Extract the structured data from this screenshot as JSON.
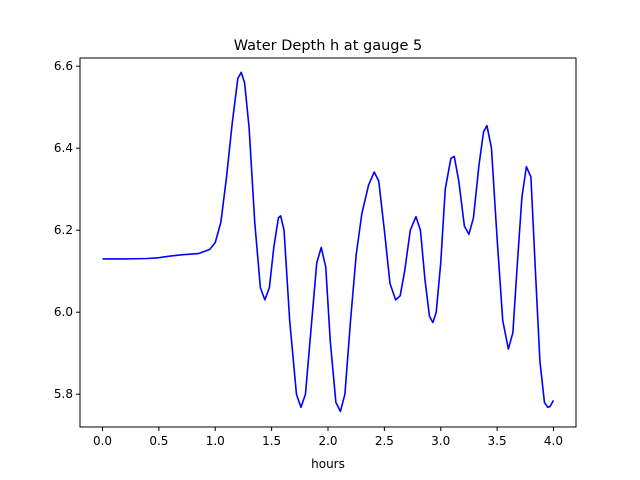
{
  "chart_data": {
    "type": "line",
    "title": "Water Depth h at gauge 5",
    "xlabel": "hours",
    "ylabel": "",
    "xlim": [
      -0.2,
      4.2
    ],
    "ylim": [
      5.72,
      6.62
    ],
    "xticks": [
      0.0,
      0.5,
      1.0,
      1.5,
      2.0,
      2.5,
      3.0,
      3.5,
      4.0
    ],
    "xtick_labels": [
      "0.0",
      "0.5",
      "1.0",
      "1.5",
      "2.0",
      "2.5",
      "3.0",
      "3.5",
      "4.0"
    ],
    "yticks": [
      5.8,
      6.0,
      6.2,
      6.4,
      6.6
    ],
    "ytick_labels": [
      "5.8",
      "6.0",
      "6.2",
      "6.4",
      "6.6"
    ],
    "grid": false,
    "legend": "none",
    "series": [
      {
        "color": "#0000ff",
        "points": [
          [
            0.0,
            6.13
          ],
          [
            0.2,
            6.13
          ],
          [
            0.4,
            6.131
          ],
          [
            0.5,
            6.133
          ],
          [
            0.6,
            6.137
          ],
          [
            0.7,
            6.14
          ],
          [
            0.85,
            6.143
          ],
          [
            0.95,
            6.153
          ],
          [
            1.0,
            6.17
          ],
          [
            1.05,
            6.22
          ],
          [
            1.1,
            6.33
          ],
          [
            1.15,
            6.46
          ],
          [
            1.2,
            6.57
          ],
          [
            1.23,
            6.585
          ],
          [
            1.26,
            6.56
          ],
          [
            1.3,
            6.45
          ],
          [
            1.35,
            6.22
          ],
          [
            1.4,
            6.06
          ],
          [
            1.44,
            6.03
          ],
          [
            1.48,
            6.06
          ],
          [
            1.52,
            6.16
          ],
          [
            1.56,
            6.23
          ],
          [
            1.58,
            6.235
          ],
          [
            1.61,
            6.2
          ],
          [
            1.66,
            5.98
          ],
          [
            1.72,
            5.8
          ],
          [
            1.76,
            5.768
          ],
          [
            1.8,
            5.8
          ],
          [
            1.85,
            5.96
          ],
          [
            1.9,
            6.12
          ],
          [
            1.94,
            6.158
          ],
          [
            1.98,
            6.11
          ],
          [
            2.02,
            5.93
          ],
          [
            2.07,
            5.78
          ],
          [
            2.11,
            5.758
          ],
          [
            2.15,
            5.8
          ],
          [
            2.2,
            5.98
          ],
          [
            2.25,
            6.14
          ],
          [
            2.3,
            6.24
          ],
          [
            2.36,
            6.31
          ],
          [
            2.41,
            6.342
          ],
          [
            2.45,
            6.32
          ],
          [
            2.5,
            6.2
          ],
          [
            2.55,
            6.07
          ],
          [
            2.6,
            6.03
          ],
          [
            2.64,
            6.04
          ],
          [
            2.68,
            6.1
          ],
          [
            2.73,
            6.2
          ],
          [
            2.78,
            6.233
          ],
          [
            2.82,
            6.2
          ],
          [
            2.86,
            6.08
          ],
          [
            2.9,
            5.99
          ],
          [
            2.93,
            5.975
          ],
          [
            2.96,
            6.0
          ],
          [
            3.0,
            6.12
          ],
          [
            3.04,
            6.3
          ],
          [
            3.09,
            6.375
          ],
          [
            3.12,
            6.38
          ],
          [
            3.16,
            6.32
          ],
          [
            3.21,
            6.21
          ],
          [
            3.25,
            6.19
          ],
          [
            3.29,
            6.23
          ],
          [
            3.34,
            6.36
          ],
          [
            3.38,
            6.44
          ],
          [
            3.41,
            6.455
          ],
          [
            3.45,
            6.4
          ],
          [
            3.5,
            6.18
          ],
          [
            3.55,
            5.98
          ],
          [
            3.6,
            5.91
          ],
          [
            3.64,
            5.95
          ],
          [
            3.68,
            6.12
          ],
          [
            3.72,
            6.28
          ],
          [
            3.76,
            6.355
          ],
          [
            3.8,
            6.33
          ],
          [
            3.84,
            6.1
          ],
          [
            3.88,
            5.88
          ],
          [
            3.92,
            5.78
          ],
          [
            3.95,
            5.768
          ],
          [
            3.97,
            5.77
          ],
          [
            4.0,
            5.785
          ]
        ]
      }
    ]
  }
}
